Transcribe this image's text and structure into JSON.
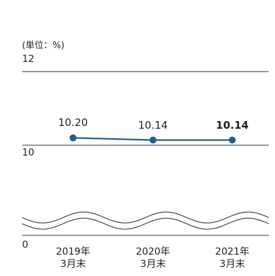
{
  "chart_data": {
    "type": "line",
    "unit_label": "(単位：%)",
    "categories": [
      "2019年\n3月末",
      "2020年\n3月末",
      "2021年\n3月末"
    ],
    "values": [
      10.2,
      10.14,
      10.14
    ],
    "value_labels": [
      "10.20",
      "10.14",
      "10.14"
    ],
    "highlight_index": 2,
    "y_ticks": [
      {
        "value": 12,
        "label": "12"
      },
      {
        "value": 10,
        "label": "10"
      },
      {
        "value": 0,
        "label": "0"
      }
    ],
    "ylim": [
      10,
      12
    ],
    "axis_break": true,
    "grid": false,
    "legend": "none",
    "colors": {
      "line": "#1e5f8e",
      "marker": "#1e5f8e",
      "axis": "#333333"
    }
  }
}
